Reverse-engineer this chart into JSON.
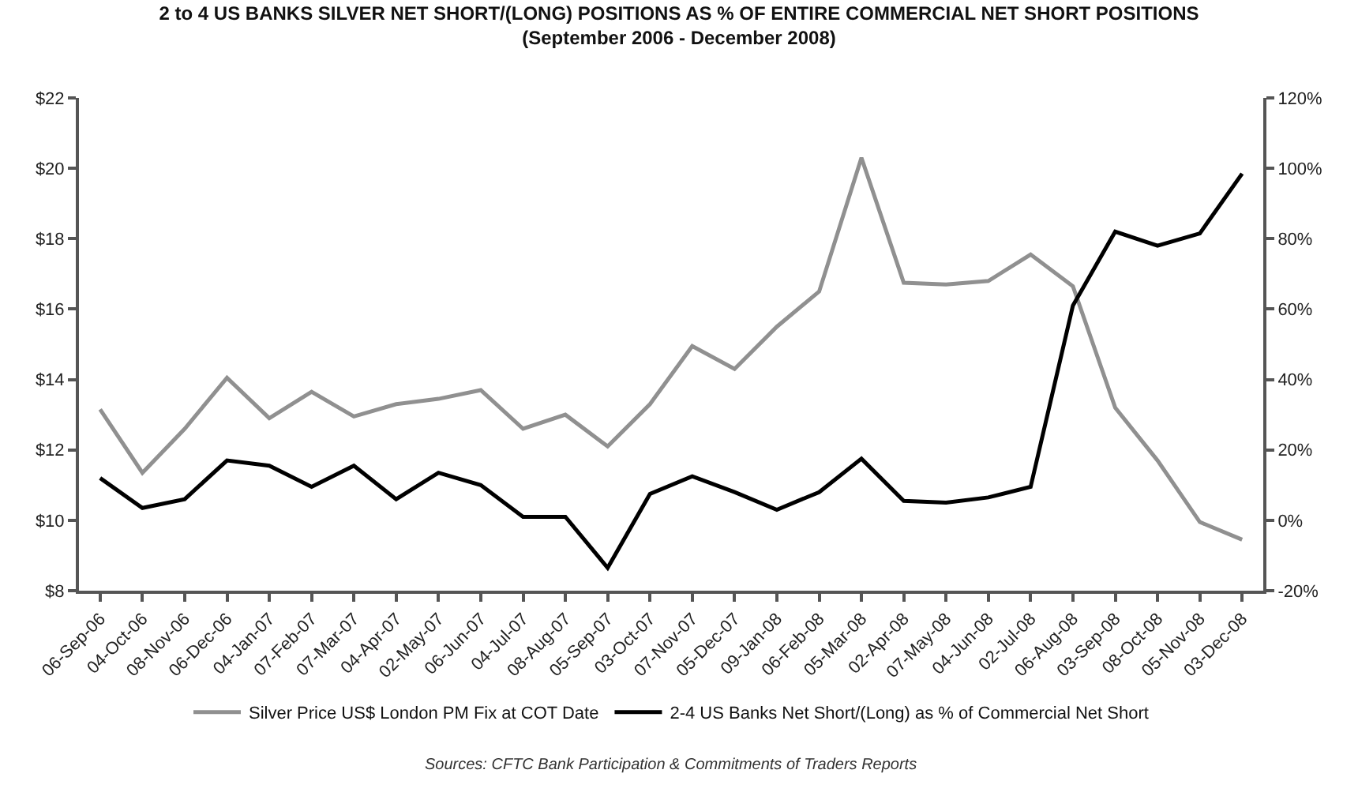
{
  "chart_data": {
    "type": "line",
    "title": "2 to 4 US BANKS SILVER NET SHORT/(LONG) POSITIONS AS % OF ENTIRE COMMERCIAL NET SHORT POSITIONS (September 2006 - December 2008)",
    "categories": [
      "06-Sep-06",
      "04-Oct-06",
      "08-Nov-06",
      "06-Dec-06",
      "04-Jan-07",
      "07-Feb-07",
      "07-Mar-07",
      "04-Apr-07",
      "02-May-07",
      "06-Jun-07",
      "04-Jul-07",
      "08-Aug-07",
      "05-Sep-07",
      "03-Oct-07",
      "07-Nov-07",
      "05-Dec-07",
      "09-Jan-08",
      "06-Feb-08",
      "05-Mar-08",
      "02-Apr-08",
      "07-May-08",
      "04-Jun-08",
      "02-Jul-08",
      "06-Aug-08",
      "03-Sep-08",
      "08-Oct-08",
      "05-Nov-08",
      "03-Dec-08"
    ],
    "series": [
      {
        "name": "Silver Price US$ London PM Fix at COT Date",
        "color": "#909090",
        "values": [
          13.15,
          11.35,
          12.6,
          14.05,
          12.9,
          13.65,
          12.95,
          13.3,
          13.45,
          13.7,
          12.6,
          13.0,
          12.1,
          13.3,
          14.95,
          14.3,
          15.5,
          16.5,
          20.3,
          16.75,
          16.7,
          16.8,
          17.55,
          16.65,
          13.2,
          11.7,
          9.95,
          9.45
        ]
      },
      {
        "name": "2-4 US Banks Net Short/(Long) as % of Commercial Net Short",
        "color": "#000000",
        "axis": "y2",
        "values": [
          12,
          3.5,
          6,
          17,
          15.5,
          9.5,
          15.5,
          6,
          13.5,
          10,
          1,
          1,
          -13.5,
          7.5,
          12.5,
          8,
          3,
          8,
          17.5,
          5.5,
          5,
          6.5,
          9.5,
          61,
          82,
          78,
          81.5,
          98.5
        ]
      }
    ],
    "ylim": [
      8,
      22
    ],
    "yticks": [
      {
        "value": 8,
        "label": "$8"
      },
      {
        "value": 10,
        "label": "$10"
      },
      {
        "value": 12,
        "label": "$12"
      },
      {
        "value": 14,
        "label": "$14"
      },
      {
        "value": 16,
        "label": "$16"
      },
      {
        "value": 18,
        "label": "$18"
      },
      {
        "value": 20,
        "label": "$20"
      },
      {
        "value": 22,
        "label": "$22"
      }
    ],
    "y2lim": [
      -20,
      120
    ],
    "y2ticks": [
      {
        "value": -20,
        "label": "-20%"
      },
      {
        "value": 0,
        "label": "0%"
      },
      {
        "value": 20,
        "label": "20%"
      },
      {
        "value": 40,
        "label": "40%"
      },
      {
        "value": 60,
        "label": "60%"
      },
      {
        "value": 80,
        "label": "80%"
      },
      {
        "value": 100,
        "label": "100%"
      },
      {
        "value": 120,
        "label": "120%"
      }
    ],
    "annotations": [
      "Sources: CFTC Bank Participation & Commitments of Traders Reports"
    ],
    "legend": "bottom",
    "marker": "none",
    "line_style": "solid"
  }
}
